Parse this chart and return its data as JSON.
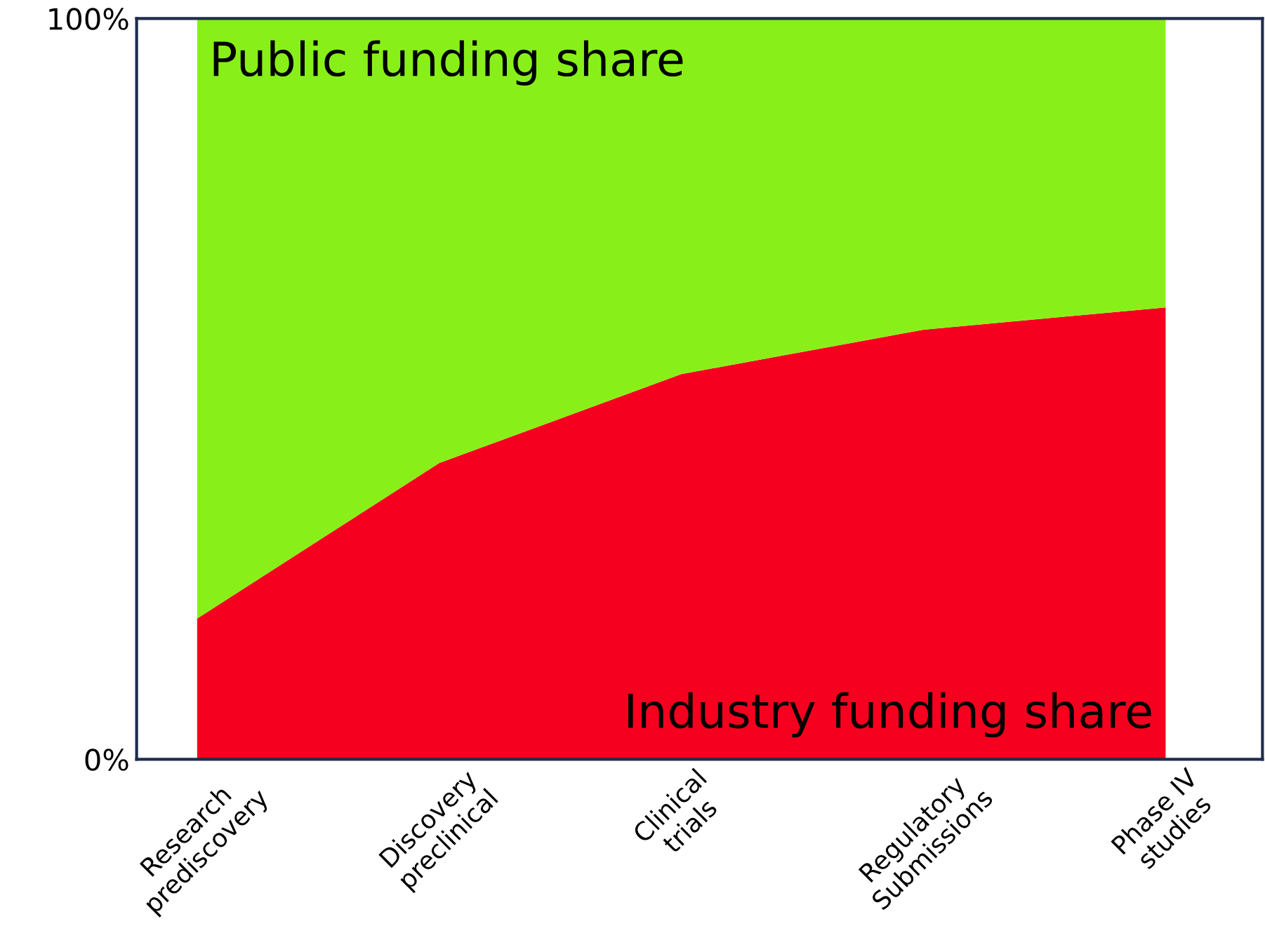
{
  "chart_data": {
    "type": "area",
    "stacked": true,
    "categories": [
      "Research\nprediscovery",
      "Discovery\npreclinical",
      "Clinical\ntrials",
      "Regulatory\nSubmissions",
      "Phase IV\nstudies"
    ],
    "series": [
      {
        "name": "Industry funding share",
        "color": "#f5001e",
        "values": [
          19,
          40,
          52,
          58,
          61
        ]
      },
      {
        "name": "Public funding share",
        "color": "#88f018",
        "values": [
          81,
          60,
          48,
          42,
          39
        ]
      }
    ],
    "ylim": [
      0,
      100
    ],
    "yticks": [
      {
        "value": 0,
        "label": "0%"
      },
      {
        "value": 100,
        "label": "100%"
      }
    ],
    "grid": false,
    "legend": false
  }
}
